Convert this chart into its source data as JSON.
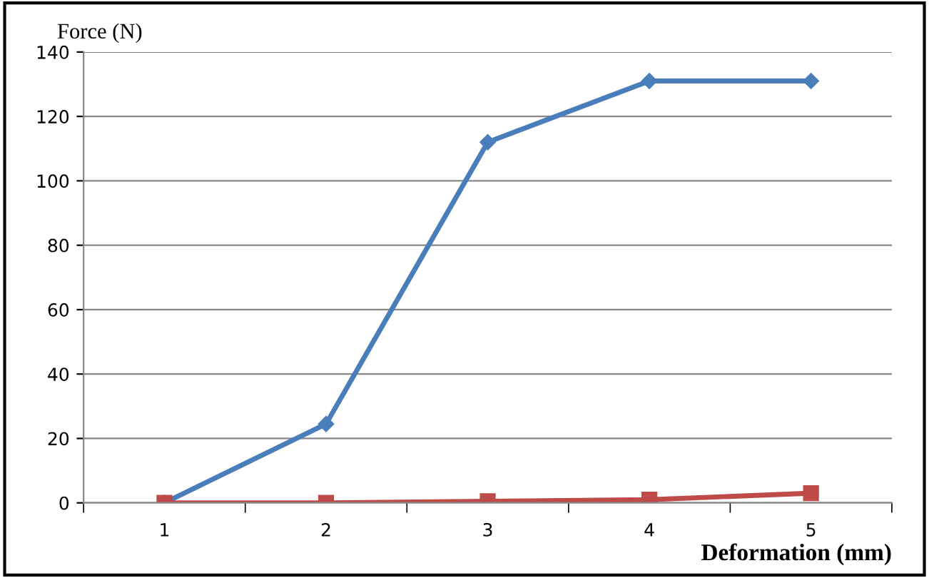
{
  "chart_data": {
    "type": "line",
    "xlabel": "Deformation (mm)",
    "ylabel": "Force (N)",
    "categories": [
      "1",
      "2",
      "3",
      "4",
      "5"
    ],
    "series": [
      {
        "color": "#4a7ebb",
        "values": [
          0,
          24.5,
          112,
          131,
          131
        ],
        "marker": "diamond"
      },
      {
        "color": "#be4b48",
        "values": [
          0,
          0,
          0.5,
          1,
          3
        ],
        "marker": "square"
      }
    ],
    "ylim": [
      0,
      140
    ],
    "yticks": [
      0,
      20,
      40,
      60,
      80,
      100,
      120,
      140
    ],
    "grid": "y"
  }
}
